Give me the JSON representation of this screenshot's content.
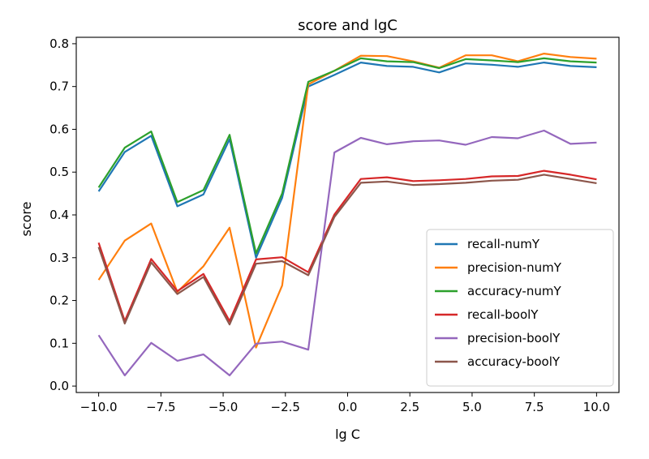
{
  "chart_data": {
    "type": "line",
    "title": "score and lgC",
    "xlabel": "lg C",
    "ylabel": "score",
    "xlim": [
      -10.9,
      10.9
    ],
    "ylim": [
      -0.015,
      0.815
    ],
    "xticks": [
      -10.0,
      -7.5,
      -5.0,
      -2.5,
      0.0,
      2.5,
      5.0,
      7.5,
      10.0
    ],
    "xtick_labels": [
      "−10.0",
      "−7.5",
      "−5.0",
      "−2.5",
      "0.0",
      "2.5",
      "5.0",
      "7.5",
      "10.0"
    ],
    "yticks": [
      0.0,
      0.1,
      0.2,
      0.3,
      0.4,
      0.5,
      0.6,
      0.7,
      0.8
    ],
    "ytick_labels": [
      "0.0",
      "0.1",
      "0.2",
      "0.3",
      "0.4",
      "0.5",
      "0.6",
      "0.7",
      "0.8"
    ],
    "grid": false,
    "legend_position": "lower-right",
    "x": [
      -10.0,
      -8.95,
      -7.89,
      -6.84,
      -5.79,
      -4.74,
      -3.68,
      -2.63,
      -1.58,
      -0.53,
      0.53,
      1.58,
      2.63,
      3.68,
      4.74,
      5.79,
      6.84,
      7.89,
      8.95,
      10.0
    ],
    "series": [
      {
        "name": "recall-numY",
        "color": "#1f77b4",
        "values": [
          0.455,
          0.547,
          0.585,
          0.42,
          0.448,
          0.577,
          0.3,
          0.44,
          0.7,
          0.727,
          0.756,
          0.748,
          0.746,
          0.733,
          0.754,
          0.751,
          0.746,
          0.756,
          0.748,
          0.745
        ]
      },
      {
        "name": "precision-numY",
        "color": "#ff7f0e",
        "values": [
          0.248,
          0.34,
          0.38,
          0.22,
          0.28,
          0.37,
          0.09,
          0.235,
          0.705,
          0.737,
          0.772,
          0.771,
          0.759,
          0.744,
          0.773,
          0.773,
          0.759,
          0.777,
          0.769,
          0.765
        ]
      },
      {
        "name": "accuracy-numY",
        "color": "#2ca02c",
        "values": [
          0.464,
          0.557,
          0.595,
          0.43,
          0.458,
          0.587,
          0.31,
          0.45,
          0.711,
          0.737,
          0.766,
          0.759,
          0.757,
          0.743,
          0.764,
          0.761,
          0.757,
          0.766,
          0.759,
          0.756
        ]
      },
      {
        "name": "recall-boolY",
        "color": "#d62728",
        "values": [
          0.335,
          0.152,
          0.297,
          0.222,
          0.262,
          0.152,
          0.296,
          0.301,
          0.266,
          0.401,
          0.484,
          0.488,
          0.479,
          0.481,
          0.484,
          0.49,
          0.491,
          0.503,
          0.494,
          0.483
        ]
      },
      {
        "name": "precision-boolY",
        "color": "#9467bd",
        "values": [
          0.119,
          0.025,
          0.101,
          0.059,
          0.074,
          0.025,
          0.099,
          0.104,
          0.085,
          0.546,
          0.58,
          0.565,
          0.572,
          0.574,
          0.564,
          0.582,
          0.579,
          0.597,
          0.566,
          0.569
        ]
      },
      {
        "name": "accuracy-boolY",
        "color": "#8c564b",
        "values": [
          0.325,
          0.146,
          0.289,
          0.215,
          0.255,
          0.144,
          0.286,
          0.292,
          0.259,
          0.395,
          0.475,
          0.478,
          0.47,
          0.472,
          0.475,
          0.48,
          0.482,
          0.494,
          0.484,
          0.474
        ]
      }
    ]
  }
}
